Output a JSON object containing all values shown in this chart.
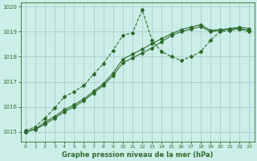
{
  "title": "Graphe pression niveau de la mer (hPa)",
  "bg_color": "#cceee8",
  "grid_color": "#aacccc",
  "line_color": "#2d6b2d",
  "xlim": [
    -0.5,
    23.5
  ],
  "ylim": [
    1014.6,
    1020.15
  ],
  "yticks": [
    1015,
    1016,
    1017,
    1018,
    1019,
    1020
  ],
  "xticks": [
    0,
    1,
    2,
    3,
    4,
    5,
    6,
    7,
    8,
    9,
    10,
    11,
    12,
    13,
    14,
    15,
    16,
    17,
    18,
    19,
    20,
    21,
    22,
    23
  ],
  "series_spiky": {
    "x": [
      0,
      1,
      2,
      3,
      4,
      5,
      6,
      7,
      8,
      9,
      10,
      11,
      12,
      13,
      14,
      15,
      16,
      17,
      18,
      19,
      20,
      21,
      22,
      23
    ],
    "y": [
      1015.05,
      1015.2,
      1015.55,
      1015.95,
      1016.4,
      1016.6,
      1016.85,
      1017.3,
      1017.72,
      1018.25,
      1018.85,
      1018.95,
      1019.87,
      1018.65,
      1018.2,
      1018.0,
      1017.85,
      1018.0,
      1018.2,
      1018.65,
      1019.0,
      1019.05,
      1019.1,
      1019.0
    ]
  },
  "series_smooth1": {
    "x": [
      0,
      1,
      2,
      3,
      4,
      5,
      6,
      7,
      8,
      9,
      10,
      11,
      12,
      13,
      14,
      15,
      16,
      17,
      18,
      19,
      20,
      21,
      22,
      23
    ],
    "y": [
      1015.0,
      1015.1,
      1015.3,
      1015.55,
      1015.8,
      1016.0,
      1016.25,
      1016.55,
      1016.85,
      1017.25,
      1017.75,
      1017.95,
      1018.15,
      1018.35,
      1018.6,
      1018.85,
      1019.0,
      1019.1,
      1019.2,
      1019.0,
      1019.05,
      1019.1,
      1019.12,
      1019.05
    ]
  },
  "series_smooth2": {
    "x": [
      0,
      1,
      2,
      3,
      4,
      5,
      6,
      7,
      8,
      9,
      10,
      11,
      12,
      13,
      14,
      15,
      16,
      17,
      18,
      19,
      20,
      21,
      22,
      23
    ],
    "y": [
      1015.0,
      1015.12,
      1015.38,
      1015.62,
      1015.88,
      1016.08,
      1016.32,
      1016.62,
      1016.92,
      1017.35,
      1017.9,
      1018.1,
      1018.3,
      1018.52,
      1018.72,
      1018.92,
      1019.08,
      1019.18,
      1019.28,
      1019.05,
      1019.08,
      1019.12,
      1019.18,
      1019.12
    ]
  }
}
